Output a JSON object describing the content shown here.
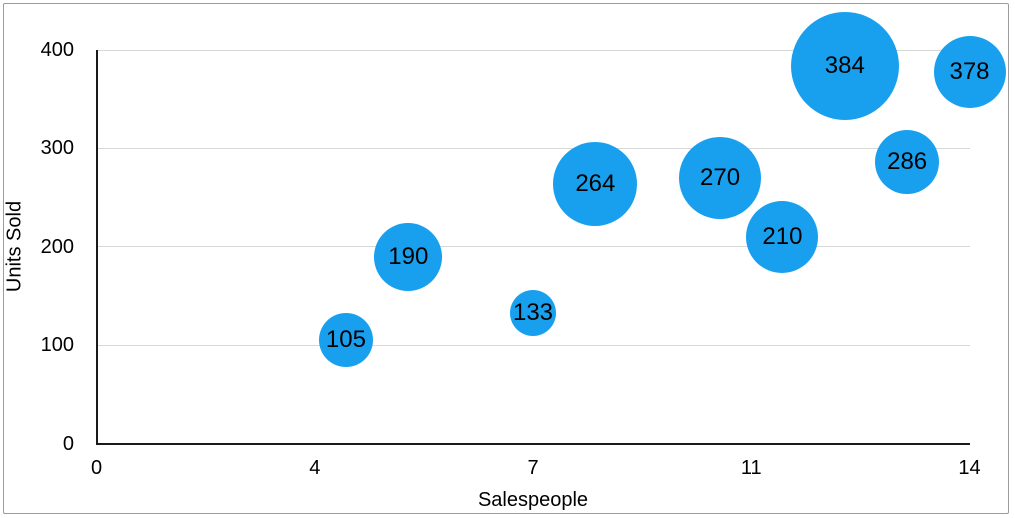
{
  "figure": {
    "background": "#ffffff",
    "border_color": "#9c9c9c"
  },
  "chart_data": {
    "type": "scatter",
    "subtype": "bubble",
    "title": "",
    "xlabel": "Salespeople",
    "ylabel": "Units Sold",
    "xlim": [
      0,
      14
    ],
    "ylim": [
      0,
      400
    ],
    "grid": "horizontal",
    "legend": "none",
    "bubble_color": "#18a0ee",
    "gridline_color": "#d8d8d8",
    "axis_color": "#1a1a1a",
    "text_color": "#000000",
    "x_ticks": [
      {
        "label": "0",
        "value": 0
      },
      {
        "label": "4",
        "value": 3.5
      },
      {
        "label": "7",
        "value": 7
      },
      {
        "label": "11",
        "value": 10.5
      },
      {
        "label": "14",
        "value": 14
      }
    ],
    "y_ticks": [
      {
        "label": "0",
        "value": 0
      },
      {
        "label": "100",
        "value": 100
      },
      {
        "label": "200",
        "value": 200
      },
      {
        "label": "300",
        "value": 300
      },
      {
        "label": "400",
        "value": 400
      }
    ],
    "points": [
      {
        "x": 4,
        "y": 105,
        "label": "105",
        "radius_px": 27
      },
      {
        "x": 5,
        "y": 190,
        "label": "190",
        "radius_px": 34
      },
      {
        "x": 7,
        "y": 133,
        "label": "133",
        "radius_px": 23
      },
      {
        "x": 8,
        "y": 264,
        "label": "264",
        "radius_px": 42
      },
      {
        "x": 10,
        "y": 270,
        "label": "270",
        "radius_px": 41
      },
      {
        "x": 11,
        "y": 210,
        "label": "210",
        "radius_px": 36
      },
      {
        "x": 12,
        "y": 384,
        "label": "384",
        "radius_px": 54
      },
      {
        "x": 13,
        "y": 286,
        "label": "286",
        "radius_px": 32
      },
      {
        "x": 14,
        "y": 378,
        "label": "378",
        "radius_px": 36
      }
    ]
  }
}
